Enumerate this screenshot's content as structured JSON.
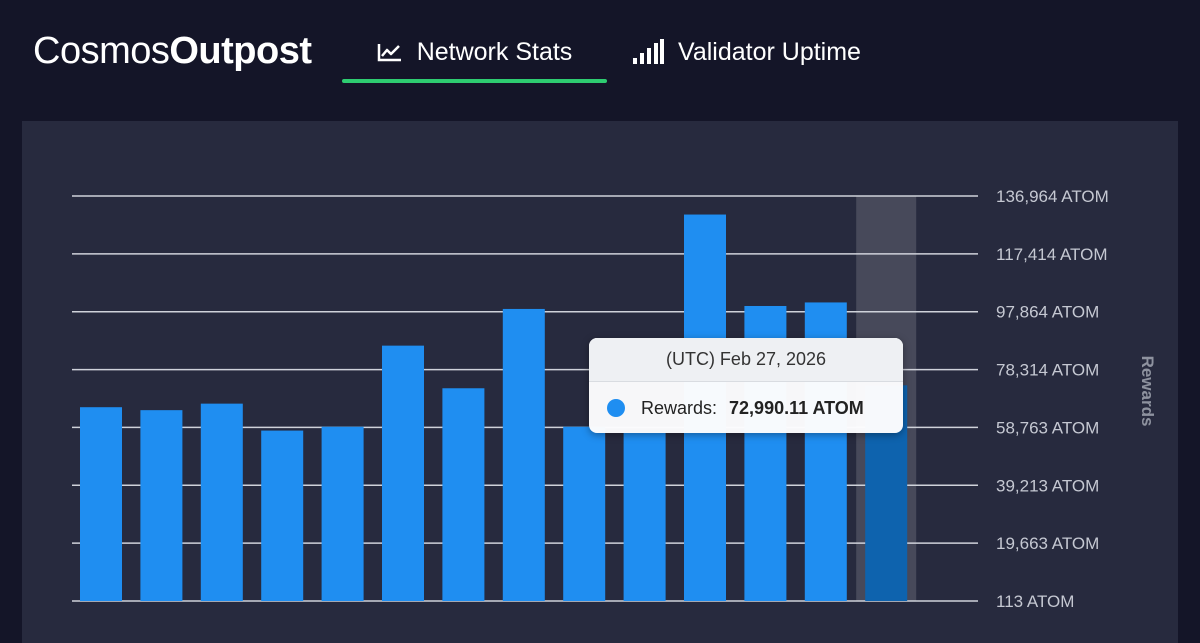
{
  "header": {
    "logo_regular": "Cosmos",
    "logo_bold": "Outpost",
    "tabs": [
      {
        "label": "Network Stats",
        "icon": "line-chart-icon",
        "active": true
      },
      {
        "label": "Validator Uptime",
        "icon": "signal-bars-icon",
        "active": false
      }
    ],
    "accent_color": "#2ecc71"
  },
  "chart_data": {
    "type": "bar",
    "title": "",
    "xlabel": "",
    "ylabel": "Rewards",
    "y_axis_position": "right",
    "ylim": [
      113,
      136964
    ],
    "y_ticks": [
      "136,964 ATOM",
      "117,414 ATOM",
      "97,864 ATOM",
      "78,314 ATOM",
      "58,763 ATOM",
      "39,213 ATOM",
      "19,663 ATOM",
      "113 ATOM"
    ],
    "y_tick_values": [
      136964,
      117414,
      97864,
      78314,
      58763,
      39213,
      19663,
      113
    ],
    "grid": true,
    "bar_color": "#1f8ef1",
    "highlight_color": "#0e63ae",
    "values": [
      65600,
      64600,
      66800,
      57700,
      59000,
      86400,
      72000,
      98800,
      59000,
      57000,
      130700,
      99800,
      101000,
      72990.11
    ],
    "highlight_index": 13
  },
  "tooltip": {
    "date": "(UTC) Feb 27, 2026",
    "label": "Rewards:",
    "value": "72,990.11 ATOM",
    "dot_color": "#1f8ef1"
  }
}
